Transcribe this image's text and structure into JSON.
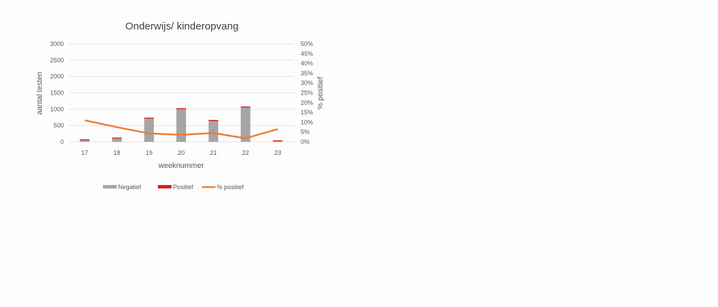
{
  "chart_data": {
    "type": "bar",
    "title": "Onderwijs/ kinderopvang",
    "xlabel": "weeknummer",
    "ylabel": "aantal testen",
    "y2label": "% positief",
    "categories": [
      "17",
      "18",
      "19",
      "20",
      "21",
      "22",
      "23"
    ],
    "ylim": [
      0,
      3000
    ],
    "yticks": [
      "0",
      "500",
      "1000",
      "1500",
      "2000",
      "2500",
      "3000"
    ],
    "y2lim": [
      0,
      50
    ],
    "y2ticks": [
      "0%",
      "5%",
      "10%",
      "15%",
      "20%",
      "25%",
      "30%",
      "35%",
      "40%",
      "45%",
      "50%"
    ],
    "stacked": true,
    "grid": true,
    "legend_position": "bottom",
    "series": [
      {
        "name": "Negatief",
        "type": "bar",
        "axis": "left",
        "color": "#a5a5a5",
        "values": [
          45,
          100,
          710,
          1000,
          640,
          1050,
          15
        ]
      },
      {
        "name": "Positief",
        "type": "bar",
        "axis": "left",
        "color": "#e31a1c",
        "values": [
          5,
          7,
          23,
          25,
          20,
          20,
          1
        ]
      },
      {
        "name": "% positief",
        "type": "line",
        "axis": "right",
        "color": "#ed7d31",
        "values": [
          11,
          7.5,
          4.3,
          3.6,
          4.5,
          1.8,
          6.5
        ]
      }
    ]
  }
}
